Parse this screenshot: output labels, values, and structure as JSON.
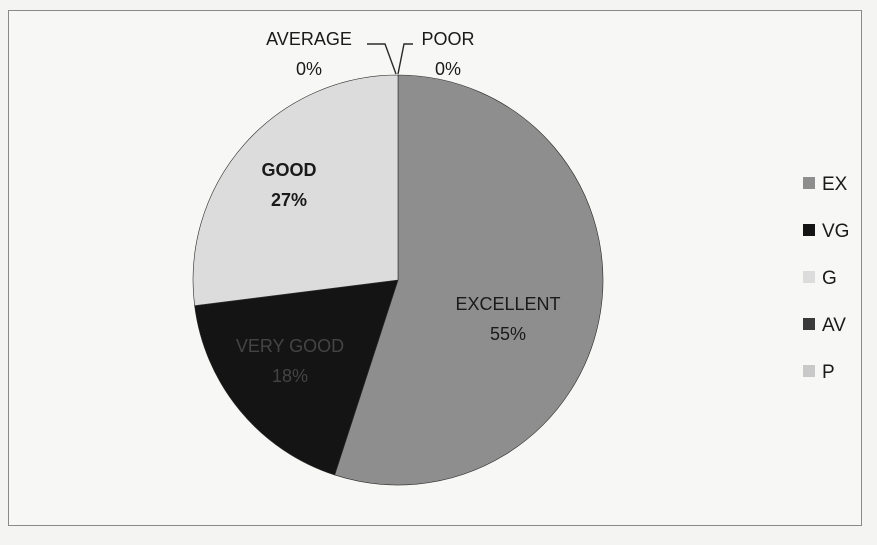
{
  "chart_data": {
    "type": "pie",
    "slices": [
      {
        "legend": "EX",
        "category": "EXCELLENT",
        "percent_label": "55%",
        "value": 55,
        "color": "#8e8e8e"
      },
      {
        "legend": "VG",
        "category": "VERY GOOD",
        "percent_label": "18%",
        "value": 18,
        "color": "#141414"
      },
      {
        "legend": "G",
        "category": "GOOD",
        "percent_label": "27%",
        "value": 27,
        "color": "#dcdcdc"
      },
      {
        "legend": "AV",
        "category": "AVERAGE",
        "percent_label": "0%",
        "value": 0,
        "color": "#3a3a3a"
      },
      {
        "legend": "P",
        "category": "POOR",
        "percent_label": "0%",
        "value": 0,
        "color": "#c9c9c9"
      }
    ],
    "legend_position": "right",
    "start_angle": "12 o'clock, clockwise"
  }
}
